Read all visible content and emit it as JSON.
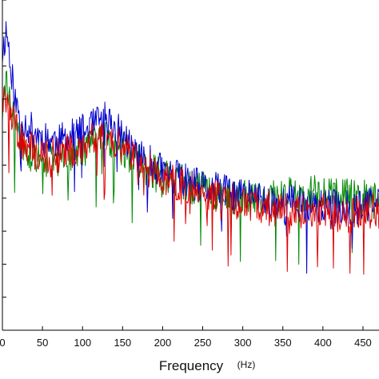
{
  "chart_data": {
    "type": "line",
    "title": "",
    "xlabel": "Frequency",
    "xunit": "(Hz)",
    "ylabel": "",
    "xlim": [
      0,
      470
    ],
    "xticks": [
      0,
      50,
      100,
      150,
      200,
      250,
      300,
      350,
      400,
      450
    ],
    "xtick_labels": [
      "0",
      "50",
      "100",
      "150",
      "200",
      "250",
      "300",
      "350",
      "400",
      "450"
    ],
    "ylim": [
      0,
      10
    ],
    "yticks": [
      0,
      1,
      2,
      3,
      4,
      5,
      6,
      7,
      8,
      9,
      10
    ],
    "ytick_labels": [],
    "grid": false,
    "legend": "none",
    "x": [
      0,
      5,
      10,
      15,
      20,
      25,
      30,
      40,
      50,
      60,
      70,
      80,
      90,
      100,
      110,
      120,
      130,
      140,
      150,
      160,
      170,
      180,
      190,
      200,
      210,
      220,
      230,
      240,
      250,
      260,
      270,
      280,
      290,
      300,
      310,
      320,
      330,
      340,
      350,
      360,
      370,
      380,
      390,
      400,
      410,
      420,
      430,
      440,
      450,
      460,
      470
    ],
    "series": [
      {
        "color": "#0000cc",
        "values": [
          8.4,
          9.1,
          8.2,
          7.0,
          6.6,
          6.4,
          6.2,
          6.0,
          5.8,
          5.8,
          5.7,
          5.8,
          5.9,
          6.0,
          6.1,
          6.3,
          6.4,
          6.1,
          5.9,
          5.6,
          5.3,
          5.1,
          5.0,
          4.8,
          4.7,
          4.6,
          4.5,
          4.4,
          4.3,
          4.3,
          4.2,
          4.2,
          4.1,
          4.1,
          4.0,
          4.0,
          3.9,
          3.9,
          3.8,
          3.9,
          3.8,
          3.8,
          3.8,
          3.7,
          3.8,
          3.7,
          3.7,
          3.7,
          3.7,
          3.8,
          3.8
        ]
      },
      {
        "color": "#008800",
        "values": [
          6.6,
          7.4,
          6.9,
          6.2,
          5.8,
          5.6,
          5.4,
          5.2,
          5.1,
          5.2,
          5.2,
          5.3,
          5.4,
          5.5,
          5.6,
          5.8,
          5.9,
          5.7,
          5.5,
          5.3,
          5.1,
          4.9,
          4.8,
          4.7,
          4.6,
          4.5,
          4.4,
          4.3,
          4.3,
          4.2,
          4.2,
          4.1,
          4.0,
          4.0,
          4.0,
          4.0,
          4.0,
          4.0,
          4.1,
          4.1,
          4.1,
          4.1,
          4.2,
          4.1,
          4.2,
          4.2,
          4.2,
          4.2,
          4.1,
          4.1,
          4.1
        ]
      },
      {
        "color": "#dd0000",
        "values": [
          7.2,
          7.0,
          6.6,
          6.2,
          5.9,
          5.7,
          5.6,
          5.4,
          5.3,
          5.3,
          5.3,
          5.4,
          5.5,
          5.6,
          5.7,
          5.9,
          6.0,
          5.8,
          5.6,
          5.4,
          5.1,
          4.9,
          4.8,
          4.6,
          4.5,
          4.4,
          4.3,
          4.2,
          4.1,
          4.1,
          4.0,
          4.0,
          3.9,
          3.9,
          3.8,
          3.8,
          3.7,
          3.7,
          3.6,
          3.7,
          3.6,
          3.6,
          3.6,
          3.6,
          3.6,
          3.5,
          3.5,
          3.5,
          3.6,
          3.6,
          3.6
        ]
      }
    ]
  }
}
